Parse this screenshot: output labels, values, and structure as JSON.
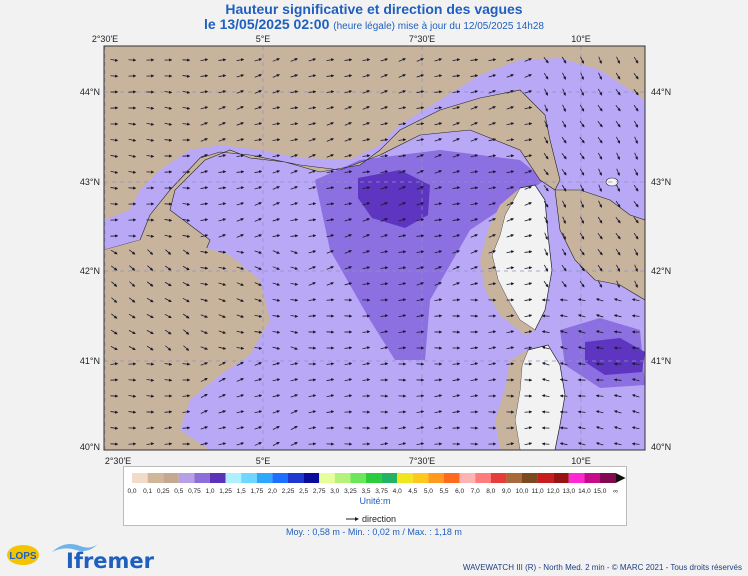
{
  "title": "Hauteur significative et direction des vagues",
  "subtitle_date": "le 13/05/2025 02:00",
  "subtitle_note": "(heure légale) mise à jour du 12/05/2025 14h28",
  "lon_labels": [
    "2°30'E",
    "5°E",
    "7°30'E",
    "10°E"
  ],
  "lat_labels": [
    "44°N",
    "43°N",
    "42°N",
    "41°N",
    "40°N"
  ],
  "legend": {
    "values": [
      "0,0",
      "0,1",
      "0,25",
      "0,5",
      "0,75",
      "1,0",
      "1,25",
      "1,5",
      "1,75",
      "2,0",
      "2,25",
      "2,5",
      "2,75",
      "3,0",
      "3,25",
      "3,5",
      "3,75",
      "4,0",
      "4,5",
      "5,0",
      "5,5",
      "6,0",
      "7,0",
      "8,0",
      "9,0",
      "10,0",
      "11,0",
      "12,0",
      "13,0",
      "14,0",
      "15,0",
      "∞"
    ],
    "colors": [
      "#f0dcc8",
      "#d2b69a",
      "#c4a892",
      "#b7a0e6",
      "#8e6ed9",
      "#5b32b8",
      "#aef0ff",
      "#6ed6ff",
      "#2ea7ff",
      "#1f6fff",
      "#1f38cf",
      "#0c0c9c",
      "#e6ff9a",
      "#b4f27a",
      "#6ee65a",
      "#2ccd3c",
      "#22b464",
      "#f0e61e",
      "#ffc81e",
      "#ff9a1e",
      "#ff6a1e",
      "#ffb4b4",
      "#ff7c7c",
      "#e63c3c",
      "#a86a3a",
      "#7c4a1e",
      "#c81e1e",
      "#961414",
      "#ff28d2",
      "#c80a8c",
      "#820a50"
    ],
    "unit_label": "Unité:m",
    "direction_label": "direction"
  },
  "stats": "Moy. : 0,58 m   -   Min. : 0,02 m / Max. : 1,18 m",
  "credit": "WAVEWATCH III (R) - North Med. 2 min - © MARC 2021 - Tous droits réservés",
  "logo_text": "Ifremer",
  "lops_text": "LOPS",
  "colors": {
    "land": "#c8b49c",
    "sea_low": "#b9a8f5",
    "sea_mid": "#8c6fe0",
    "sea_high": "#5e35c0",
    "title": "#1f5fbf"
  }
}
